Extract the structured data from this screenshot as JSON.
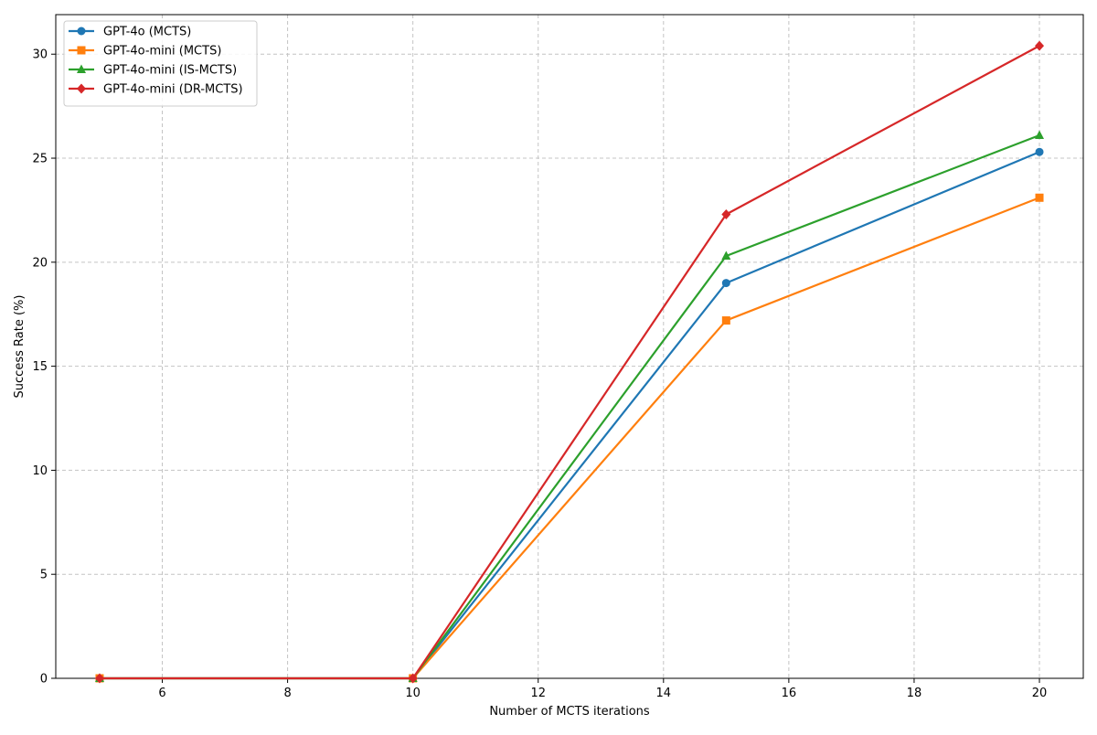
{
  "chart_data": {
    "type": "line",
    "title": "",
    "xlabel": "Number of MCTS iterations",
    "ylabel": "Success Rate (%)",
    "xlim": [
      4.3,
      20.7
    ],
    "ylim": [
      0,
      31.9
    ],
    "xticks": [
      6,
      8,
      10,
      12,
      14,
      16,
      18,
      20
    ],
    "yticks": [
      0,
      5,
      10,
      15,
      20,
      25,
      30
    ],
    "grid": true,
    "legend_position": "top-left",
    "x": [
      5,
      10,
      15,
      20
    ],
    "series": [
      {
        "name": "GPT-4o (MCTS)",
        "values": [
          0,
          0,
          19.0,
          25.3
        ],
        "color": "#1f77b4",
        "marker": "circle"
      },
      {
        "name": "GPT-4o-mini (MCTS)",
        "values": [
          0,
          0,
          17.2,
          23.1
        ],
        "color": "#ff7f0e",
        "marker": "square"
      },
      {
        "name": "GPT-4o-mini (IS-MCTS)",
        "values": [
          0,
          0,
          20.3,
          26.1
        ],
        "color": "#2ca02c",
        "marker": "triangle"
      },
      {
        "name": "GPT-4o-mini (DR-MCTS)",
        "values": [
          0,
          0,
          22.3,
          30.4
        ],
        "color": "#d62728",
        "marker": "diamond"
      }
    ]
  }
}
